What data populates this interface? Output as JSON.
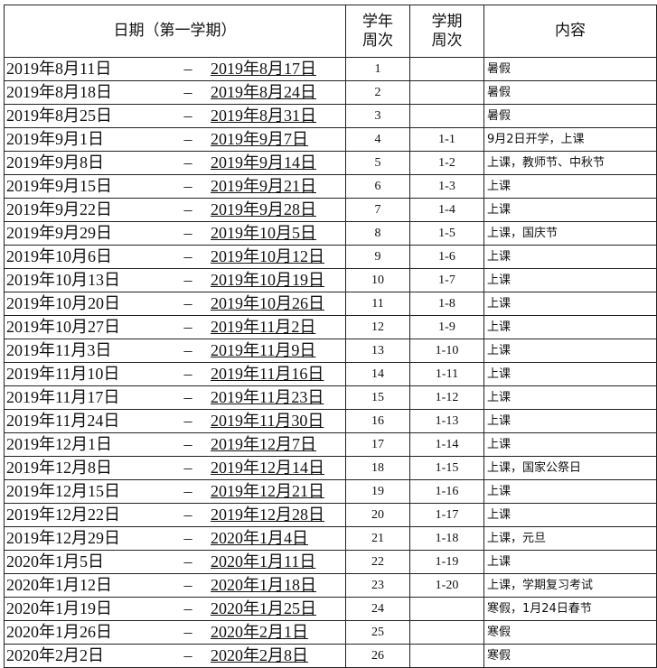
{
  "header": {
    "date": "日期（第一学期）",
    "year_week": "学年\n周次",
    "term_week": "学期\n周次",
    "content": "内容"
  },
  "separator": "–",
  "rows": [
    {
      "start": "2019年8月11日",
      "end": "2019年8月17日",
      "year_week": "1",
      "term_week": "",
      "content": "暑假"
    },
    {
      "start": "2019年8月18日",
      "end": "2019年8月24日",
      "year_week": "2",
      "term_week": "",
      "content": "暑假"
    },
    {
      "start": "2019年8月25日",
      "end": "2019年8月31日",
      "year_week": "3",
      "term_week": "",
      "content": "暑假"
    },
    {
      "start": "2019年9月1日",
      "end": "2019年9月7日",
      "year_week": "4",
      "term_week": "1-1",
      "content": "9月2日开学，上课"
    },
    {
      "start": "2019年9月8日",
      "end": "2019年9月14日",
      "year_week": "5",
      "term_week": "1-2",
      "content": "上课，教师节、中秋节"
    },
    {
      "start": "2019年9月15日",
      "end": "2019年9月21日",
      "year_week": "6",
      "term_week": "1-3",
      "content": "上课"
    },
    {
      "start": "2019年9月22日",
      "end": "2019年9月28日",
      "year_week": "7",
      "term_week": "1-4",
      "content": "上课"
    },
    {
      "start": "2019年9月29日",
      "end": "2019年10月5日",
      "year_week": "8",
      "term_week": "1-5",
      "content": "上课，国庆节"
    },
    {
      "start": "2019年10月6日",
      "end": "2019年10月12日",
      "year_week": "9",
      "term_week": "1-6",
      "content": "上课"
    },
    {
      "start": "2019年10月13日",
      "end": "2019年10月19日",
      "year_week": "10",
      "term_week": "1-7",
      "content": "上课"
    },
    {
      "start": "2019年10月20日",
      "end": "2019年10月26日",
      "year_week": "11",
      "term_week": "1-8",
      "content": "上课"
    },
    {
      "start": "2019年10月27日",
      "end": "2019年11月2日",
      "year_week": "12",
      "term_week": "1-9",
      "content": "上课"
    },
    {
      "start": "2019年11月3日",
      "end": "2019年11月9日",
      "year_week": "13",
      "term_week": "1-10",
      "content": "上课"
    },
    {
      "start": "2019年11月10日",
      "end": "2019年11月16日",
      "year_week": "14",
      "term_week": "1-11",
      "content": "上课"
    },
    {
      "start": "2019年11月17日",
      "end": "2019年11月23日",
      "year_week": "15",
      "term_week": "1-12",
      "content": "上课"
    },
    {
      "start": "2019年11月24日",
      "end": "2019年11月30日",
      "year_week": "16",
      "term_week": "1-13",
      "content": "上课"
    },
    {
      "start": "2019年12月1日",
      "end": "2019年12月7日",
      "year_week": "17",
      "term_week": "1-14",
      "content": "上课"
    },
    {
      "start": "2019年12月8日",
      "end": "2019年12月14日",
      "year_week": "18",
      "term_week": "1-15",
      "content": "上课，国家公祭日"
    },
    {
      "start": "2019年12月15日",
      "end": "2019年12月21日",
      "year_week": "19",
      "term_week": "1-16",
      "content": "上课"
    },
    {
      "start": "2019年12月22日",
      "end": "2019年12月28日",
      "year_week": "20",
      "term_week": "1-17",
      "content": "上课"
    },
    {
      "start": "2019年12月29日",
      "end": "2020年1月4日",
      "year_week": "21",
      "term_week": "1-18",
      "content": "上课，元旦"
    },
    {
      "start": "2020年1月5日",
      "end": "2020年1月11日",
      "year_week": "22",
      "term_week": "1-19",
      "content": "上课"
    },
    {
      "start": "2020年1月12日",
      "end": "2020年1月18日",
      "year_week": "23",
      "term_week": "1-20",
      "content": "上课，学期复习考试"
    },
    {
      "start": "2020年1月19日",
      "end": "2020年1月25日",
      "year_week": "24",
      "term_week": "",
      "content": "寒假，1月24日春节"
    },
    {
      "start": "2020年1月26日",
      "end": "2020年2月1日",
      "year_week": "25",
      "term_week": "",
      "content": "寒假"
    },
    {
      "start": "2020年2月2日",
      "end": "2020年2月8日",
      "year_week": "26",
      "term_week": "",
      "content": "寒假"
    }
  ]
}
